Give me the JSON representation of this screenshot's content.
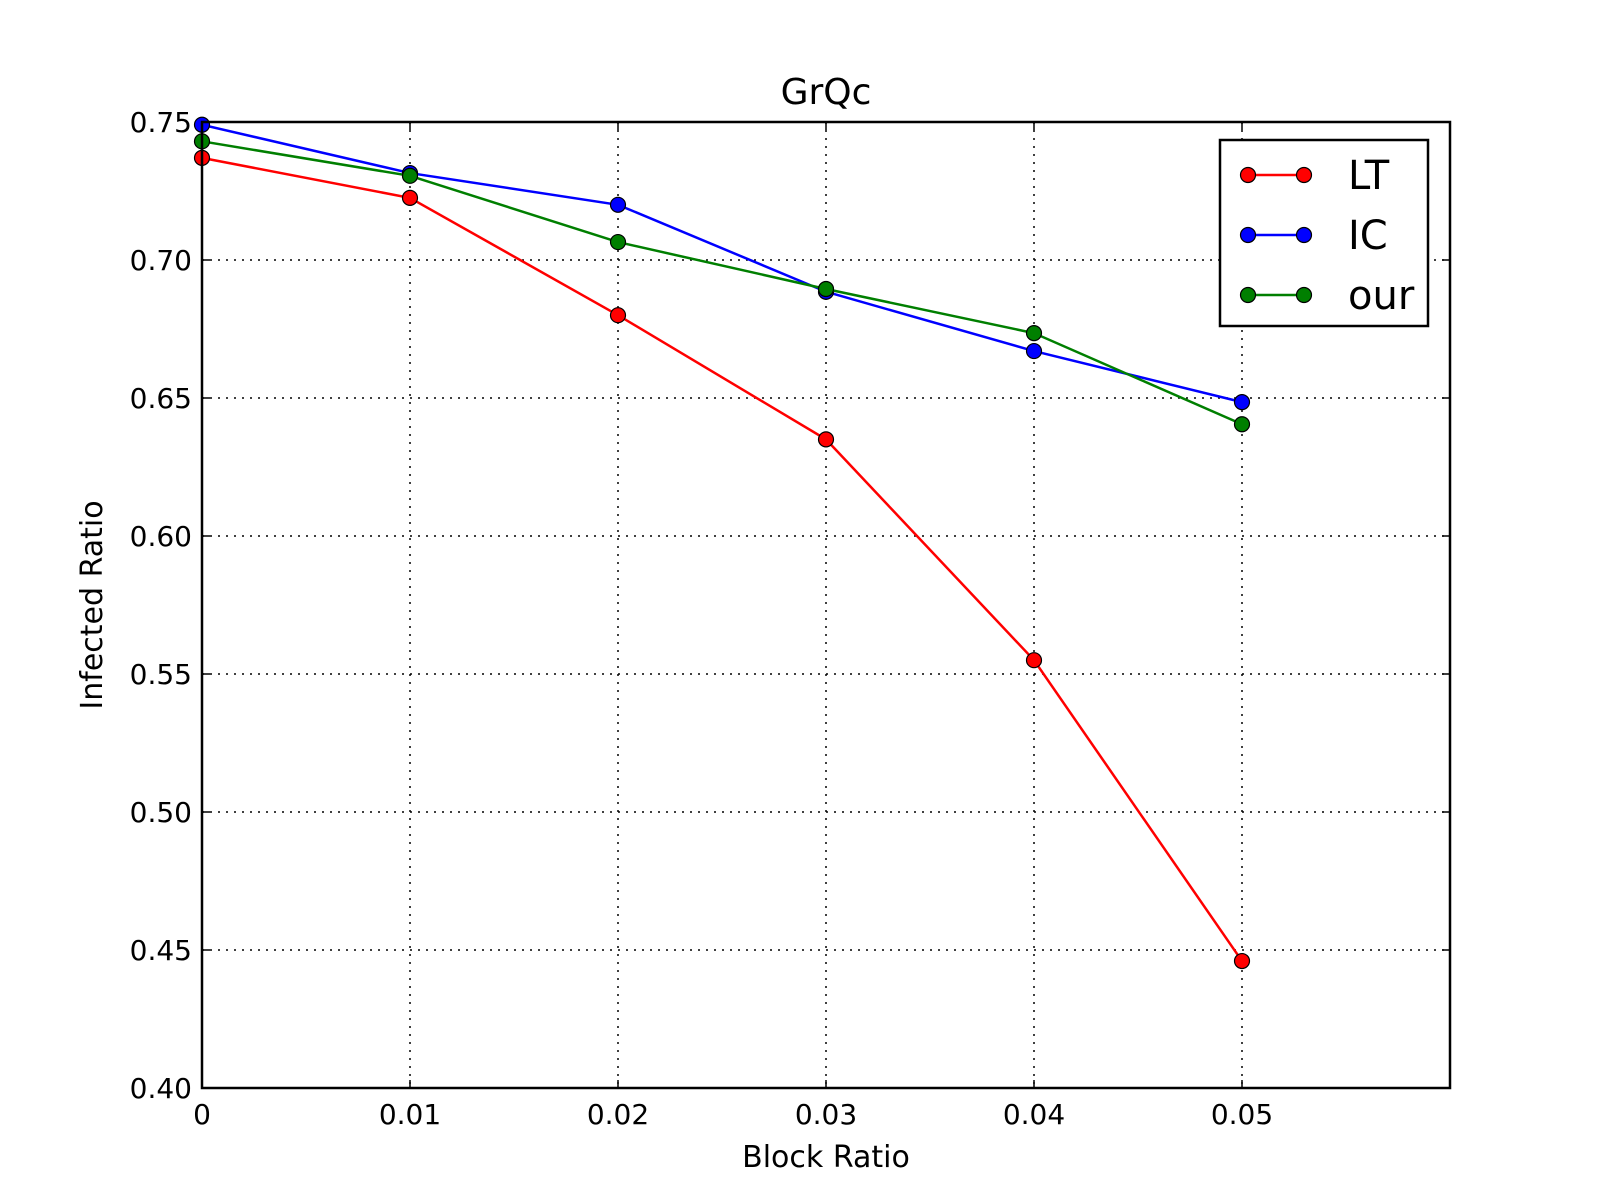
{
  "chart_data": {
    "type": "line",
    "title": "GrQc",
    "xlabel": "Block Ratio",
    "ylabel": "Infected Ratio",
    "xlim": [
      0,
      0.06
    ],
    "ylim": [
      0.4,
      0.75
    ],
    "x_ticks": [
      0,
      0.01,
      0.02,
      0.03,
      0.04,
      0.05
    ],
    "x_tick_labels": [
      "0",
      "0.01",
      "0.02",
      "0.03",
      "0.04",
      "0.05"
    ],
    "y_ticks": [
      0.4,
      0.45,
      0.5,
      0.55,
      0.6,
      0.65,
      0.7,
      0.75
    ],
    "y_tick_labels": [
      "0.40",
      "0.45",
      "0.50",
      "0.55",
      "0.60",
      "0.65",
      "0.70",
      "0.75"
    ],
    "grid": true,
    "legend_position": "top-right",
    "x": [
      0,
      0.01,
      0.02,
      0.03,
      0.04,
      0.05
    ],
    "series": [
      {
        "name": "LT",
        "color": "#ff0000",
        "values": [
          0.737,
          0.7225,
          0.68,
          0.635,
          0.555,
          0.446
        ]
      },
      {
        "name": "IC",
        "color": "#0000ff",
        "values": [
          0.749,
          0.7315,
          0.72,
          0.6885,
          0.667,
          0.6485
        ]
      },
      {
        "name": "our",
        "color": "#007f00",
        "values": [
          0.743,
          0.7305,
          0.7065,
          0.6895,
          0.6735,
          0.6405
        ]
      }
    ]
  }
}
